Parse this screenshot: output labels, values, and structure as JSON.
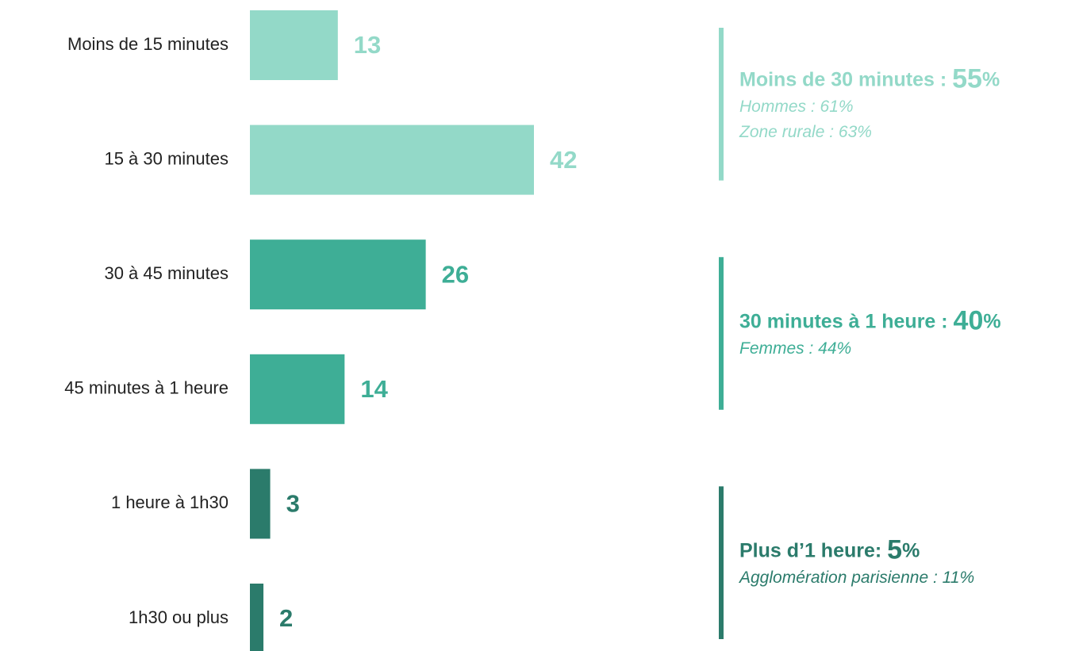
{
  "chart_data": {
    "type": "barh",
    "categories": [
      "Moins de 15 minutes",
      "15 à 30 minutes",
      "30 à 45 minutes",
      "45 minutes à 1 heure",
      "1 heure à 1h30",
      "1h30 ou plus"
    ],
    "values": [
      13,
      42,
      26,
      14,
      3,
      2
    ],
    "colors": [
      "#93d9c8",
      "#93d9c8",
      "#3eae96",
      "#3eae96",
      "#2b7b6b",
      "#2b7b6b"
    ],
    "annotations": [
      {
        "label": "Moins de 30 minutes : ",
        "value": 55,
        "unit": "%",
        "color": "#93d9c8",
        "details": [
          "Hommes : 61%",
          "Zone rurale : 63%"
        ]
      },
      {
        "label": "30 minutes à 1 heure : ",
        "value": 40,
        "unit": "%",
        "color": "#3eae96",
        "details": [
          "Femmes : 44%"
        ]
      },
      {
        "label": "Plus d’1 heure: ",
        "value": 5,
        "unit": "%",
        "color": "#2b7b6b",
        "details": [
          "Agglomération parisienne : 11%"
        ]
      }
    ]
  }
}
